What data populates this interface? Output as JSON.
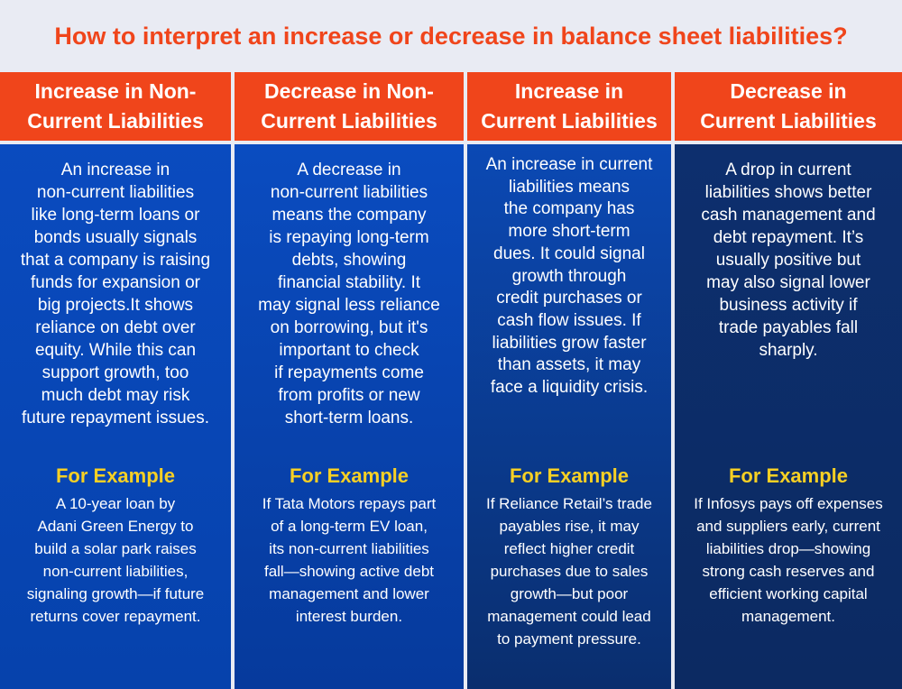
{
  "title": "How to interpret an increase or decrease in balance sheet liabilities?",
  "colors": {
    "accent": "#f0451b",
    "example_label": "#f7d024",
    "blue": "#0a4bbf",
    "navy": "#0c2a62"
  },
  "columns": [
    {
      "heading": "Increase in Non-\nCurrent Liabilities",
      "description": "An increase in\nnon-current liabilities\nlike long-term loans or\nbonds usually signals\nthat a company is raising\nfunds for expansion or\nbig projects.It shows\nreliance on debt over\nequity. While this can\nsupport growth, too\nmuch debt may risk\nfuture repayment issues.",
      "example_label": "For Example",
      "example": "A 10-year loan by\nAdani Green Energy to\nbuild a solar park raises\nnon-current liabilities,\nsignaling growth—if future\nreturns cover repayment."
    },
    {
      "heading": "Decrease in Non-\nCurrent Liabilities",
      "description": "A decrease in\nnon-current liabilities\nmeans the company\nis repaying long-term\ndebts, showing\nfinancial stability. It\nmay signal less reliance\non borrowing, but it's\nimportant to check\nif repayments come\nfrom profits or new\nshort-term loans.",
      "example_label": "For Example",
      "example": "If Tata Motors repays part\nof a long-term EV loan,\nits non-current liabilities\nfall—showing active debt\nmanagement and lower\ninterest burden."
    },
    {
      "heading": "Increase in\nCurrent Liabilities",
      "description": "An increase in current\nliabilities means\nthe company has\nmore short-term\ndues. It could signal\ngrowth through\ncredit purchases or\ncash flow issues. If\nliabilities grow faster\nthan assets, it may\nface a liquidity crisis.",
      "example_label": "For Example",
      "example": "If Reliance Retail’s trade\npayables rise, it may\nreflect higher credit\npurchases due to sales\ngrowth—but poor\nmanagement could lead\nto payment pressure."
    },
    {
      "heading": "Decrease in\nCurrent Liabilities",
      "description": "A drop in current\nliabilities shows better\ncash management and\ndebt repayment. It’s\nusually positive but\nmay also signal lower\nbusiness activity if\ntrade payables fall\nsharply.",
      "example_label": "For Example",
      "example": "If Infosys pays off expenses\nand suppliers early, current\nliabilities drop—showing\nstrong cash reserves and\nefficient working capital\nmanagement."
    }
  ]
}
